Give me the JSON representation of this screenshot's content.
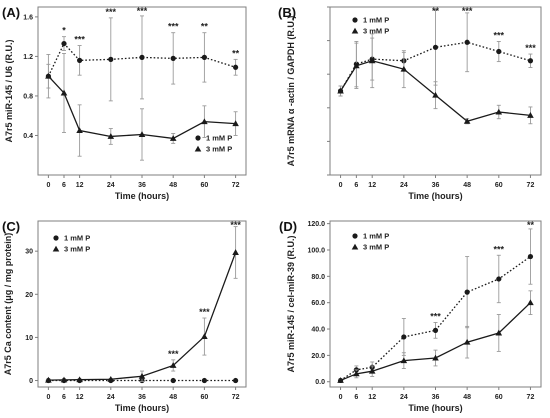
{
  "colors": {
    "series": "#1a1a1a",
    "errorbar": "#9a9a9a",
    "frame": "#7f7f7f"
  },
  "chart_data": [
    {
      "type": "line",
      "panel_label": "(A)",
      "xlabel": "Time (hours)",
      "ylabel": "A7r5 miR-145 / U6 (R.U.)",
      "x": [
        0,
        6,
        12,
        24,
        36,
        48,
        60,
        72
      ],
      "xticks": [
        "0",
        "6",
        "12",
        "24",
        "36",
        "48",
        "60",
        "72"
      ],
      "xlim": [
        -4,
        76
      ],
      "ylim": [
        0,
        1.7
      ],
      "yticks": [
        0.4,
        0.8,
        1.2,
        1.6
      ],
      "ytick_labels": [
        "0.4",
        "0.8",
        "1.2",
        "1.6"
      ],
      "legend_position": "right",
      "series": [
        {
          "name": "1 mM P",
          "marker": "circle",
          "linestyle": "dotted",
          "values": [
            1.0,
            1.33,
            1.16,
            1.17,
            1.19,
            1.18,
            1.19,
            1.09
          ],
          "errors": [
            0.22,
            0.07,
            0.15,
            0.42,
            0.42,
            0.26,
            0.25,
            0.08
          ]
        },
        {
          "name": "3 mM P",
          "marker": "triangle",
          "linestyle": "solid",
          "values": [
            1.0,
            0.83,
            0.45,
            0.39,
            0.41,
            0.37,
            0.54,
            0.52
          ],
          "errors": [
            0.12,
            0.4,
            0.26,
            0.08,
            0.26,
            0.05,
            0.16,
            0.12
          ]
        }
      ],
      "significance": [
        {
          "x": 6,
          "label": "*"
        },
        {
          "x": 12,
          "label": "***"
        },
        {
          "x": 24,
          "label": "***"
        },
        {
          "x": 36,
          "label": "***"
        },
        {
          "x": 48,
          "label": "***"
        },
        {
          "x": 60,
          "label": "**"
        },
        {
          "x": 72,
          "label": "**"
        }
      ]
    },
    {
      "type": "line",
      "panel_label": "(B)",
      "xlabel": "Time (hours)",
      "ylabel": "A7r5 mRNA α -actin / GAPDH (R.U.)",
      "x": [
        0,
        6,
        12,
        24,
        36,
        48,
        60,
        72
      ],
      "xticks": [
        "0",
        "6",
        "12",
        "24",
        "36",
        "48",
        "60",
        "72"
      ],
      "xlim": [
        -4,
        76
      ],
      "ylim": [
        0,
        2.0
      ],
      "yticks": [
        0.0,
        0.4,
        0.8,
        1.2,
        1.6,
        2.0
      ],
      "ytick_labels": [
        "",
        "",
        "",
        "",
        "",
        ""
      ],
      "legend_position": "top-left",
      "series": [
        {
          "name": "1 mM P",
          "marker": "circle",
          "linestyle": "dotted",
          "values": [
            1.0,
            1.32,
            1.38,
            1.36,
            1.52,
            1.58,
            1.47,
            1.36
          ],
          "errors": [
            0.06,
            0.27,
            0.25,
            0.1,
            0.45,
            0.35,
            0.12,
            0.08
          ]
        },
        {
          "name": "3 mM P",
          "marker": "triangle",
          "linestyle": "solid",
          "values": [
            1.0,
            1.3,
            1.36,
            1.26,
            0.95,
            0.64,
            0.75,
            0.71
          ],
          "errors": [
            0.06,
            0.27,
            0.32,
            0.22,
            0.16,
            0.03,
            0.08,
            0.1
          ]
        }
      ],
      "significance": [
        {
          "x": 36,
          "label": "**"
        },
        {
          "x": 48,
          "label": "***"
        },
        {
          "x": 60,
          "label": "***"
        },
        {
          "x": 72,
          "label": "***"
        }
      ]
    },
    {
      "type": "line",
      "panel_label": "(C)",
      "xlabel": "Time (hours)",
      "ylabel": "A7r5 Ca content (μg / mg protein)",
      "x": [
        0,
        6,
        12,
        24,
        36,
        48,
        60,
        72
      ],
      "xticks": [
        "0",
        "6",
        "12",
        "24",
        "36",
        "48",
        "60",
        "72"
      ],
      "xlim": [
        -4,
        76
      ],
      "ylim": [
        -1.5,
        37
      ],
      "yticks": [
        0,
        10,
        20,
        30
      ],
      "ytick_labels": [
        "0",
        "10",
        "20",
        "30"
      ],
      "legend_position": "top-left",
      "series": [
        {
          "name": "1 mM P",
          "marker": "circle",
          "linestyle": "dotted",
          "values": [
            0,
            0,
            0,
            0,
            0,
            0,
            0,
            0
          ],
          "errors": [
            0.1,
            0.1,
            0.1,
            0.1,
            0.2,
            0.2,
            0.2,
            0.2
          ]
        },
        {
          "name": "3 mM P",
          "marker": "triangle",
          "linestyle": "solid",
          "values": [
            0.1,
            0.15,
            0.2,
            0.3,
            1.0,
            3.5,
            10.2,
            29.7
          ],
          "errors": [
            0.1,
            0.1,
            0.1,
            0.2,
            1.2,
            1.3,
            4.3,
            6.0
          ]
        }
      ],
      "significance": [
        {
          "x": 48,
          "label": "***"
        },
        {
          "x": 60,
          "label": "***"
        },
        {
          "x": 72,
          "label": "***"
        }
      ]
    },
    {
      "type": "line",
      "panel_label": "(D)",
      "xlabel": "Time (hours)",
      "ylabel": "A7r5 miR-145 / cel-miR-39 (R.U.)",
      "x": [
        0,
        6,
        12,
        24,
        36,
        48,
        60,
        72
      ],
      "xticks": [
        "0",
        "6",
        "12",
        "24",
        "36",
        "48",
        "60",
        "72"
      ],
      "xlim": [
        -4,
        76
      ],
      "ylim": [
        -4,
        122
      ],
      "yticks": [
        0,
        20,
        40,
        60,
        80,
        100,
        120
      ],
      "ytick_labels": [
        "0.0",
        "20.0",
        "40.0",
        "60.0",
        "80.0",
        "100.0",
        "120.0"
      ],
      "legend_position": "top-left",
      "series": [
        {
          "name": "1 mM P",
          "marker": "circle",
          "linestyle": "dotted",
          "values": [
            1,
            9,
            11,
            34,
            39,
            68,
            78,
            95
          ],
          "errors": [
            0.5,
            3,
            4,
            14,
            6,
            27,
            18,
            21
          ]
        },
        {
          "name": "3 mM P",
          "marker": "triangle",
          "linestyle": "solid",
          "values": [
            1,
            6,
            8,
            16,
            18,
            30,
            37,
            60
          ],
          "errors": [
            0.5,
            3,
            4,
            6,
            6,
            12,
            14,
            9
          ]
        }
      ],
      "significance": [
        {
          "x": 36,
          "label": "***"
        },
        {
          "x": 60,
          "label": "***"
        },
        {
          "x": 72,
          "label": "**"
        }
      ]
    }
  ]
}
